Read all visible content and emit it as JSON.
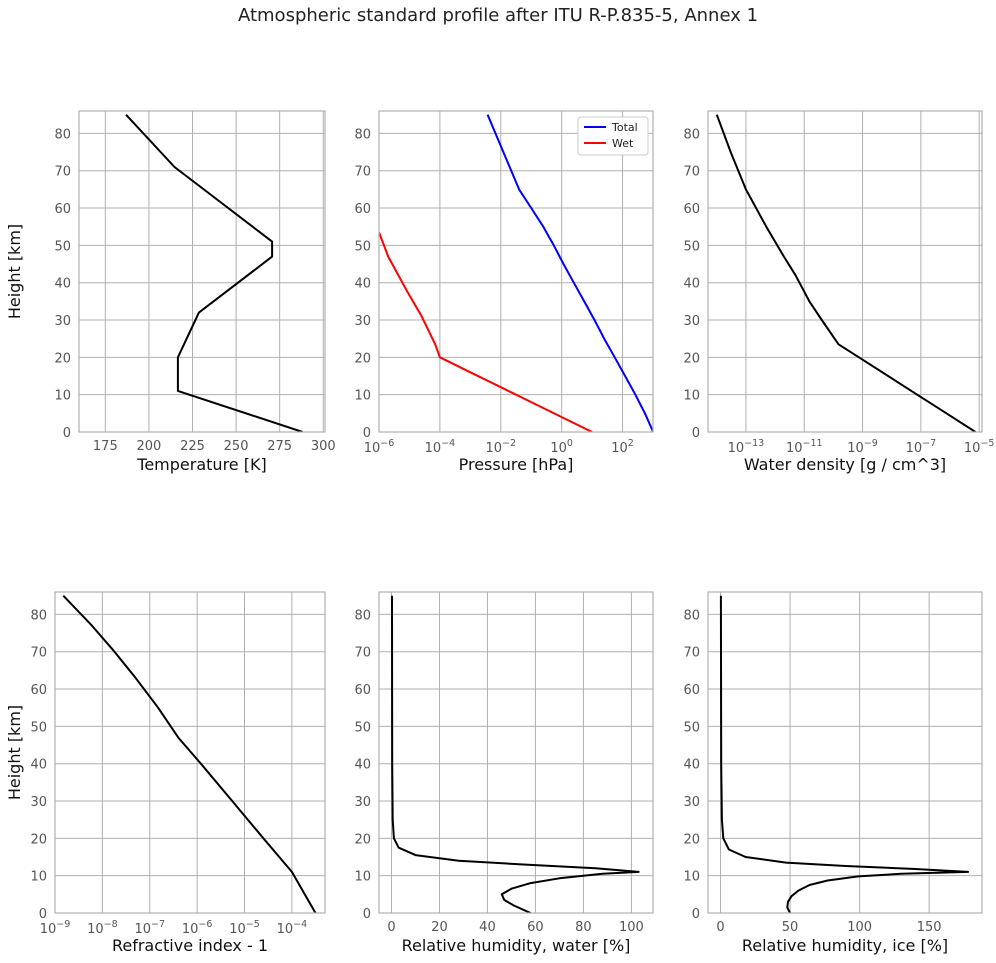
{
  "figure": {
    "suptitle": "Atmospheric standard profile after ITU R-P.835-5, Annex 1"
  },
  "colors": {
    "black": "#000000",
    "total": "#0000ff",
    "wet": "#ff0000",
    "grid": "#b0b0b0",
    "frame": "#b0b0b0",
    "tick_text": "#555555"
  },
  "chart_data": [
    {
      "type": "line",
      "xlabel": "Temperature [K]",
      "ylabel": "Height [km]",
      "xscale": "linear",
      "xlim": [
        159.9,
        301
      ],
      "ylim": [
        0,
        86
      ],
      "xticks": [
        175,
        200,
        225,
        250,
        275,
        300
      ],
      "xticklabels": [
        "175",
        "200",
        "225",
        "250",
        "275",
        "300"
      ],
      "yticks": [
        0,
        10,
        20,
        30,
        40,
        50,
        60,
        70,
        80
      ],
      "yticklabels": [
        "0",
        "10",
        "20",
        "30",
        "40",
        "50",
        "60",
        "70",
        "80"
      ],
      "grid": true,
      "series": [
        {
          "color": "black",
          "x": [
            288.15,
            216.65,
            216.65,
            228.65,
            270.65,
            270.65,
            214.65,
            186.87
          ],
          "y": [
            0,
            11,
            20,
            32,
            47,
            51,
            71,
            85
          ]
        }
      ]
    },
    {
      "type": "line",
      "xlabel": "Pressure [hPa]",
      "ylabel": "",
      "xscale": "log",
      "xlim": [
        1e-06,
        1000
      ],
      "ylim": [
        0,
        86
      ],
      "xticks": [
        1e-06,
        0.0001,
        0.01,
        1,
        100
      ],
      "xticklabels": [
        {
          "base": "10",
          "exp": "−6"
        },
        {
          "base": "10",
          "exp": "−4"
        },
        {
          "base": "10",
          "exp": "−2"
        },
        {
          "base": "10",
          "exp": "0"
        },
        {
          "base": "10",
          "exp": "2"
        }
      ],
      "yticks": [
        0,
        10,
        20,
        30,
        40,
        50,
        60,
        70,
        80
      ],
      "yticklabels": [
        "0",
        "10",
        "20",
        "30",
        "40",
        "50",
        "60",
        "70",
        "80"
      ],
      "grid": true,
      "legend": {
        "location": "top-right",
        "entries": [
          "Total",
          "Wet"
        ]
      },
      "series": [
        {
          "name": "Total",
          "color": "total",
          "x": [
            1013.25,
            540,
            265,
            121,
            55,
            25,
            12,
            5.5,
            2.5,
            1.15,
            0.55,
            0.25,
            0.1,
            0.04,
            0.0037
          ],
          "y": [
            0,
            5,
            10,
            15,
            20,
            25,
            30,
            35,
            40,
            45,
            50,
            55,
            60,
            65,
            85
          ]
        },
        {
          "name": "Wet",
          "color": "wet",
          "x": [
            10,
            1,
            0.1,
            0.01,
            0.001,
            0.0001,
            7e-05,
            2.5e-05,
            8e-06,
            2e-06,
            1e-06
          ],
          "y": [
            0,
            4,
            8,
            12,
            16,
            20,
            23.5,
            31,
            38,
            47,
            53.5
          ]
        }
      ]
    },
    {
      "type": "line",
      "xlabel": "Water density [g / cm^3]",
      "ylabel": "",
      "xscale": "log",
      "xlim": [
        5e-15,
        1.25e-05
      ],
      "ylim": [
        0,
        86
      ],
      "xticks": [
        1e-13,
        1e-11,
        1e-09,
        1e-07,
        1e-05
      ],
      "xticklabels": [
        {
          "base": "10",
          "exp": "−13"
        },
        {
          "base": "10",
          "exp": "−11"
        },
        {
          "base": "10",
          "exp": "−9"
        },
        {
          "base": "10",
          "exp": "−7"
        },
        {
          "base": "10",
          "exp": "−5"
        }
      ],
      "yticks": [
        0,
        10,
        20,
        30,
        40,
        50,
        60,
        70,
        80
      ],
      "yticklabels": [
        "0",
        "10",
        "20",
        "30",
        "40",
        "50",
        "60",
        "70",
        "80"
      ],
      "grid": true,
      "series": [
        {
          "color": "black",
          "x": [
            7.5e-06,
            7.5e-07,
            7.5e-08,
            7.5e-09,
            7.5e-10,
            1.5e-10,
            4e-11,
            1.5e-11,
            5e-12,
            2e-12,
            5e-13,
            1e-13,
            3e-14,
            1e-14
          ],
          "y": [
            0,
            5,
            10,
            15,
            20,
            23.5,
            30,
            35,
            42,
            47,
            55,
            65,
            75,
            85
          ]
        }
      ]
    },
    {
      "type": "line",
      "xlabel": "Refractive index - 1",
      "ylabel": "Height [km]",
      "xscale": "log",
      "xlim": [
        1e-09,
        0.0005
      ],
      "ylim": [
        0,
        86
      ],
      "xticks": [
        1e-09,
        1e-08,
        1e-07,
        1e-06,
        1e-05,
        0.0001
      ],
      "xticklabels": [
        {
          "base": "10",
          "exp": "−9"
        },
        {
          "base": "10",
          "exp": "−8"
        },
        {
          "base": "10",
          "exp": "−7"
        },
        {
          "base": "10",
          "exp": "−6"
        },
        {
          "base": "10",
          "exp": "−5"
        },
        {
          "base": "10",
          "exp": "−4"
        }
      ],
      "yticks": [
        0,
        10,
        20,
        30,
        40,
        50,
        60,
        70,
        80
      ],
      "yticklabels": [
        "0",
        "10",
        "20",
        "30",
        "40",
        "50",
        "60",
        "70",
        "80"
      ],
      "grid": true,
      "series": [
        {
          "color": "black",
          "x": [
            0.000315,
            0.0001,
            2.5e-05,
            5.5e-06,
            1.2e-06,
            4e-07,
            1.5e-07,
            5e-08,
            1.8e-08,
            6e-09,
            1.5e-09
          ],
          "y": [
            0,
            11,
            20,
            30,
            40,
            47,
            55,
            63,
            70,
            77,
            85
          ]
        }
      ]
    },
    {
      "type": "line",
      "xlabel": "Relative humidity, water [%]",
      "ylabel": "",
      "xscale": "linear",
      "xlim": [
        -5.2,
        109
      ],
      "ylim": [
        0,
        86
      ],
      "xticks": [
        0,
        20,
        40,
        60,
        80,
        100
      ],
      "xticklabels": [
        "0",
        "20",
        "40",
        "60",
        "80",
        "100"
      ],
      "yticks": [
        0,
        10,
        20,
        30,
        40,
        50,
        60,
        70,
        80
      ],
      "yticklabels": [
        "0",
        "10",
        "20",
        "30",
        "40",
        "50",
        "60",
        "70",
        "80"
      ],
      "grid": true,
      "series": [
        {
          "color": "black",
          "x": [
            58,
            51,
            47,
            46,
            50,
            58,
            70,
            88,
            103,
            85,
            55,
            28,
            10,
            3,
            1,
            0.5,
            0.3,
            0.2
          ],
          "y": [
            0,
            2,
            3.5,
            5,
            6.5,
            8,
            9.3,
            10.5,
            11,
            12,
            13,
            14,
            15.5,
            17.5,
            20,
            25,
            40,
            85
          ]
        }
      ]
    },
    {
      "type": "line",
      "xlabel": "Relative humidity, ice [%]",
      "ylabel": "",
      "xscale": "linear",
      "xlim": [
        -9,
        188
      ],
      "ylim": [
        0,
        86
      ],
      "xticks": [
        0,
        50,
        100,
        150
      ],
      "xticklabels": [
        "0",
        "50",
        "100",
        "150"
      ],
      "yticks": [
        0,
        10,
        20,
        30,
        40,
        50,
        60,
        70,
        80
      ],
      "yticklabels": [
        "0",
        "10",
        "20",
        "30",
        "40",
        "50",
        "60",
        "70",
        "80"
      ],
      "grid": true,
      "series": [
        {
          "color": "black",
          "x": [
            50,
            48,
            48.5,
            51,
            56,
            64,
            77,
            99,
            130,
            178,
            140,
            90,
            47,
            18,
            6,
            2,
            1,
            0.5,
            0.3
          ],
          "y": [
            0,
            1.5,
            3,
            4.5,
            6,
            7.5,
            8.7,
            9.8,
            10.5,
            11,
            11.8,
            12.6,
            13.5,
            15,
            17,
            20,
            25,
            40,
            85
          ]
        }
      ]
    }
  ]
}
